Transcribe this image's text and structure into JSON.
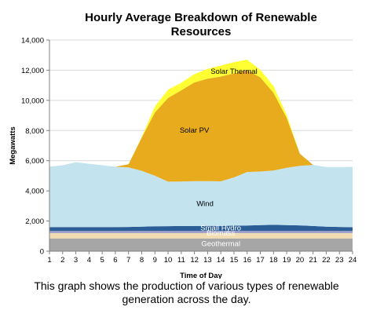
{
  "chart_data": {
    "type": "area",
    "stacked": true,
    "title": [
      "Hourly Average Breakdown of Renewable",
      "Resources"
    ],
    "xlabel": "Time of Day",
    "ylabel": "Megawatts",
    "xlim": [
      1,
      24
    ],
    "ylim": [
      0,
      14000
    ],
    "x": [
      1,
      2,
      3,
      4,
      5,
      6,
      7,
      8,
      9,
      10,
      11,
      12,
      13,
      14,
      15,
      16,
      17,
      18,
      19,
      20,
      21,
      22,
      23,
      24
    ],
    "x_ticks": [
      "1",
      "2",
      "3",
      "4",
      "5",
      "6",
      "7",
      "8",
      "9",
      "10",
      "11",
      "12",
      "13",
      "14",
      "15",
      "16",
      "17",
      "18",
      "19",
      "20",
      "21",
      "22",
      "23",
      "24"
    ],
    "y_ticks": [
      "0",
      "2,000",
      "4,000",
      "6,000",
      "8,000",
      "10,000",
      "12,000",
      "14,000"
    ],
    "y_tick_values": [
      0,
      2000,
      4000,
      6000,
      8000,
      10000,
      12000,
      14000
    ],
    "grid": "horizontal",
    "series": [
      {
        "name": "Geothermal",
        "color": "#a6a6a6",
        "values": [
          850,
          850,
          850,
          850,
          850,
          850,
          850,
          850,
          850,
          850,
          850,
          850,
          850,
          850,
          850,
          850,
          850,
          850,
          850,
          850,
          850,
          850,
          850,
          850
        ]
      },
      {
        "name": "Biomass",
        "color": "#f2dcb1",
        "values": [
          350,
          350,
          350,
          350,
          350,
          350,
          350,
          350,
          350,
          350,
          350,
          350,
          350,
          350,
          350,
          350,
          350,
          350,
          350,
          350,
          350,
          350,
          350,
          350
        ]
      },
      {
        "name": "",
        "color": "#9b9bc9",
        "values": [
          150,
          150,
          150,
          150,
          150,
          150,
          150,
          150,
          150,
          150,
          150,
          150,
          150,
          150,
          150,
          150,
          150,
          150,
          150,
          150,
          150,
          150,
          150,
          150
        ]
      },
      {
        "name": "Small Hydro",
        "color": "#2b5e96",
        "values": [
          250,
          250,
          250,
          250,
          250,
          250,
          260,
          280,
          300,
          310,
          320,
          320,
          330,
          330,
          340,
          350,
          380,
          400,
          380,
          360,
          320,
          280,
          260,
          240
        ]
      },
      {
        "name": "Wind",
        "color": "#c3e3ef",
        "values": [
          4000,
          4100,
          4300,
          4200,
          4100,
          4000,
          3950,
          3700,
          3350,
          2950,
          2950,
          2970,
          2960,
          2950,
          3200,
          3550,
          3550,
          3600,
          3800,
          3950,
          4050,
          3950,
          3970,
          4000
        ]
      },
      {
        "name": "Solar PV",
        "color": "#e8ab1e",
        "values": [
          0,
          0,
          0,
          0,
          0,
          0,
          200,
          2200,
          4200,
          5550,
          6050,
          6550,
          6800,
          6950,
          6900,
          6750,
          6250,
          5150,
          3300,
          800,
          0,
          0,
          0,
          0
        ]
      },
      {
        "name": "Solar Thermal",
        "color": "#ffff33",
        "values": [
          0,
          0,
          0,
          0,
          0,
          0,
          0,
          50,
          400,
          550,
          500,
          550,
          650,
          730,
          750,
          700,
          500,
          450,
          200,
          0,
          0,
          0,
          0,
          0
        ]
      }
    ],
    "annotations": [
      {
        "text": "Solar Thermal",
        "series": "Solar Thermal",
        "x": 15,
        "y": 11750
      },
      {
        "text": "Solar PV",
        "series": "Solar PV",
        "x": 12,
        "y": 7850
      },
      {
        "text": "Wind",
        "series": "Wind",
        "x": 12.8,
        "y": 3000
      },
      {
        "text": "Small Hydro",
        "series": "Small Hydro",
        "x": 14,
        "y": 1380
      },
      {
        "text": "Biomass",
        "series": "Biomass",
        "x": 14,
        "y": 1030
      },
      {
        "text": "Geothermal",
        "series": "Geothermal",
        "x": 14,
        "y": 350
      }
    ]
  },
  "caption": [
    "This graph shows the production of various types of renewable",
    "generation across the day."
  ]
}
